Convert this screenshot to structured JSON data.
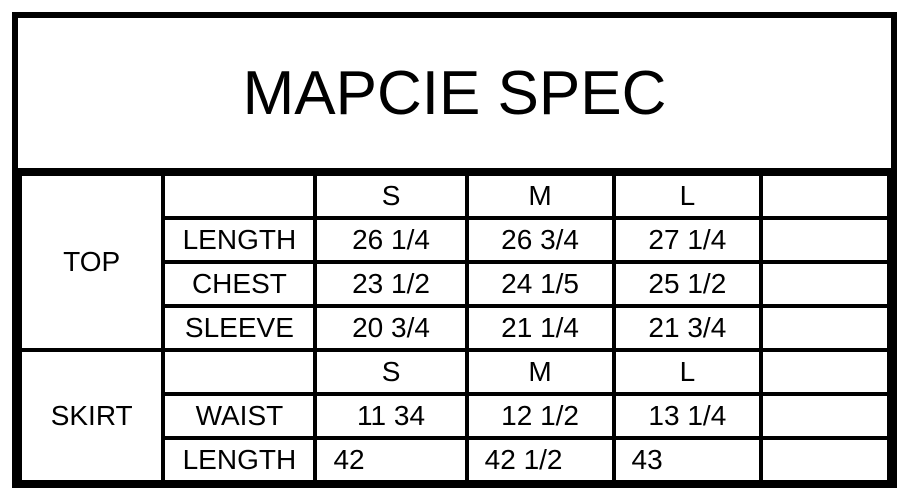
{
  "title": "MAPCIE SPEC",
  "colors": {
    "border": "#000000",
    "background": "#ffffff",
    "text": "#000000"
  },
  "table": {
    "size_headers": [
      "S",
      "M",
      "L"
    ],
    "sections": [
      {
        "category": "TOP",
        "rows": [
          {
            "label": "LENGTH",
            "s": "26 1/4",
            "m": "26 3/4",
            "l": "27 1/4"
          },
          {
            "label": "CHEST",
            "s": "23 1/2",
            "m": "24 1/5",
            "l": "25 1/2"
          },
          {
            "label": "SLEEVE",
            "s": "20 3/4",
            "m": "21 1/4",
            "l": "21 3/4"
          }
        ]
      },
      {
        "category": "SKIRT",
        "rows": [
          {
            "label": "WAIST",
            "s": "11 34",
            "m": "12 1/2",
            "l": "13 1/4"
          },
          {
            "label": "LENGTH",
            "s": "42",
            "m": "42 1/2",
            "l": "43"
          }
        ]
      }
    ]
  }
}
